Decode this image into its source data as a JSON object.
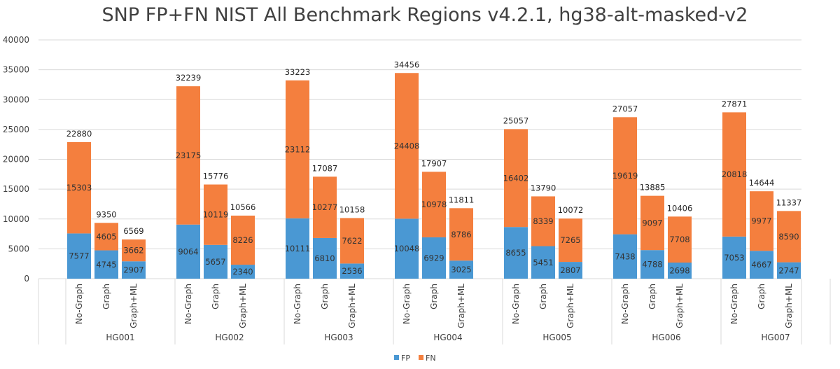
{
  "chart_data": {
    "type": "bar",
    "stacked": true,
    "title": "SNP FP+FN NIST All Benchmark Regions v4.2.1, hg38-alt-masked-v2",
    "xlabel": "",
    "ylabel": "",
    "ylim": [
      0,
      40000
    ],
    "yticks": [
      "0",
      "5000",
      "10000",
      "15000",
      "20000",
      "25000",
      "30000",
      "35000",
      "40000"
    ],
    "grid": true,
    "legend_position": "bottom",
    "groups": [
      "HG001",
      "HG002",
      "HG003",
      "HG004",
      "HG005",
      "HG006",
      "HG007"
    ],
    "subcategories": [
      "No-Graph",
      "Graph",
      "Graph+ML"
    ],
    "series": [
      {
        "name": "FP",
        "color": "#4a98d3",
        "values": [
          [
            7577,
            4745,
            2907
          ],
          [
            9064,
            5657,
            2340
          ],
          [
            10111,
            6810,
            2536
          ],
          [
            10048,
            6929,
            3025
          ],
          [
            8655,
            5451,
            2807
          ],
          [
            7438,
            4788,
            2698
          ],
          [
            7053,
            4667,
            2747
          ]
        ]
      },
      {
        "name": "FN",
        "color": "#f47f3e",
        "values": [
          [
            15303,
            4605,
            3662
          ],
          [
            23175,
            10119,
            8226
          ],
          [
            23112,
            10277,
            7622
          ],
          [
            24408,
            10978,
            8786
          ],
          [
            16402,
            8339,
            7265
          ],
          [
            19619,
            9097,
            7708
          ],
          [
            20818,
            9977,
            8590
          ]
        ]
      }
    ],
    "totals": [
      [
        22880,
        9350,
        6569
      ],
      [
        32239,
        15776,
        10566
      ],
      [
        33223,
        17087,
        10158
      ],
      [
        34456,
        17907,
        11811
      ],
      [
        25057,
        13790,
        10072
      ],
      [
        27057,
        13885,
        10406
      ],
      [
        27871,
        14644,
        11337
      ]
    ]
  }
}
